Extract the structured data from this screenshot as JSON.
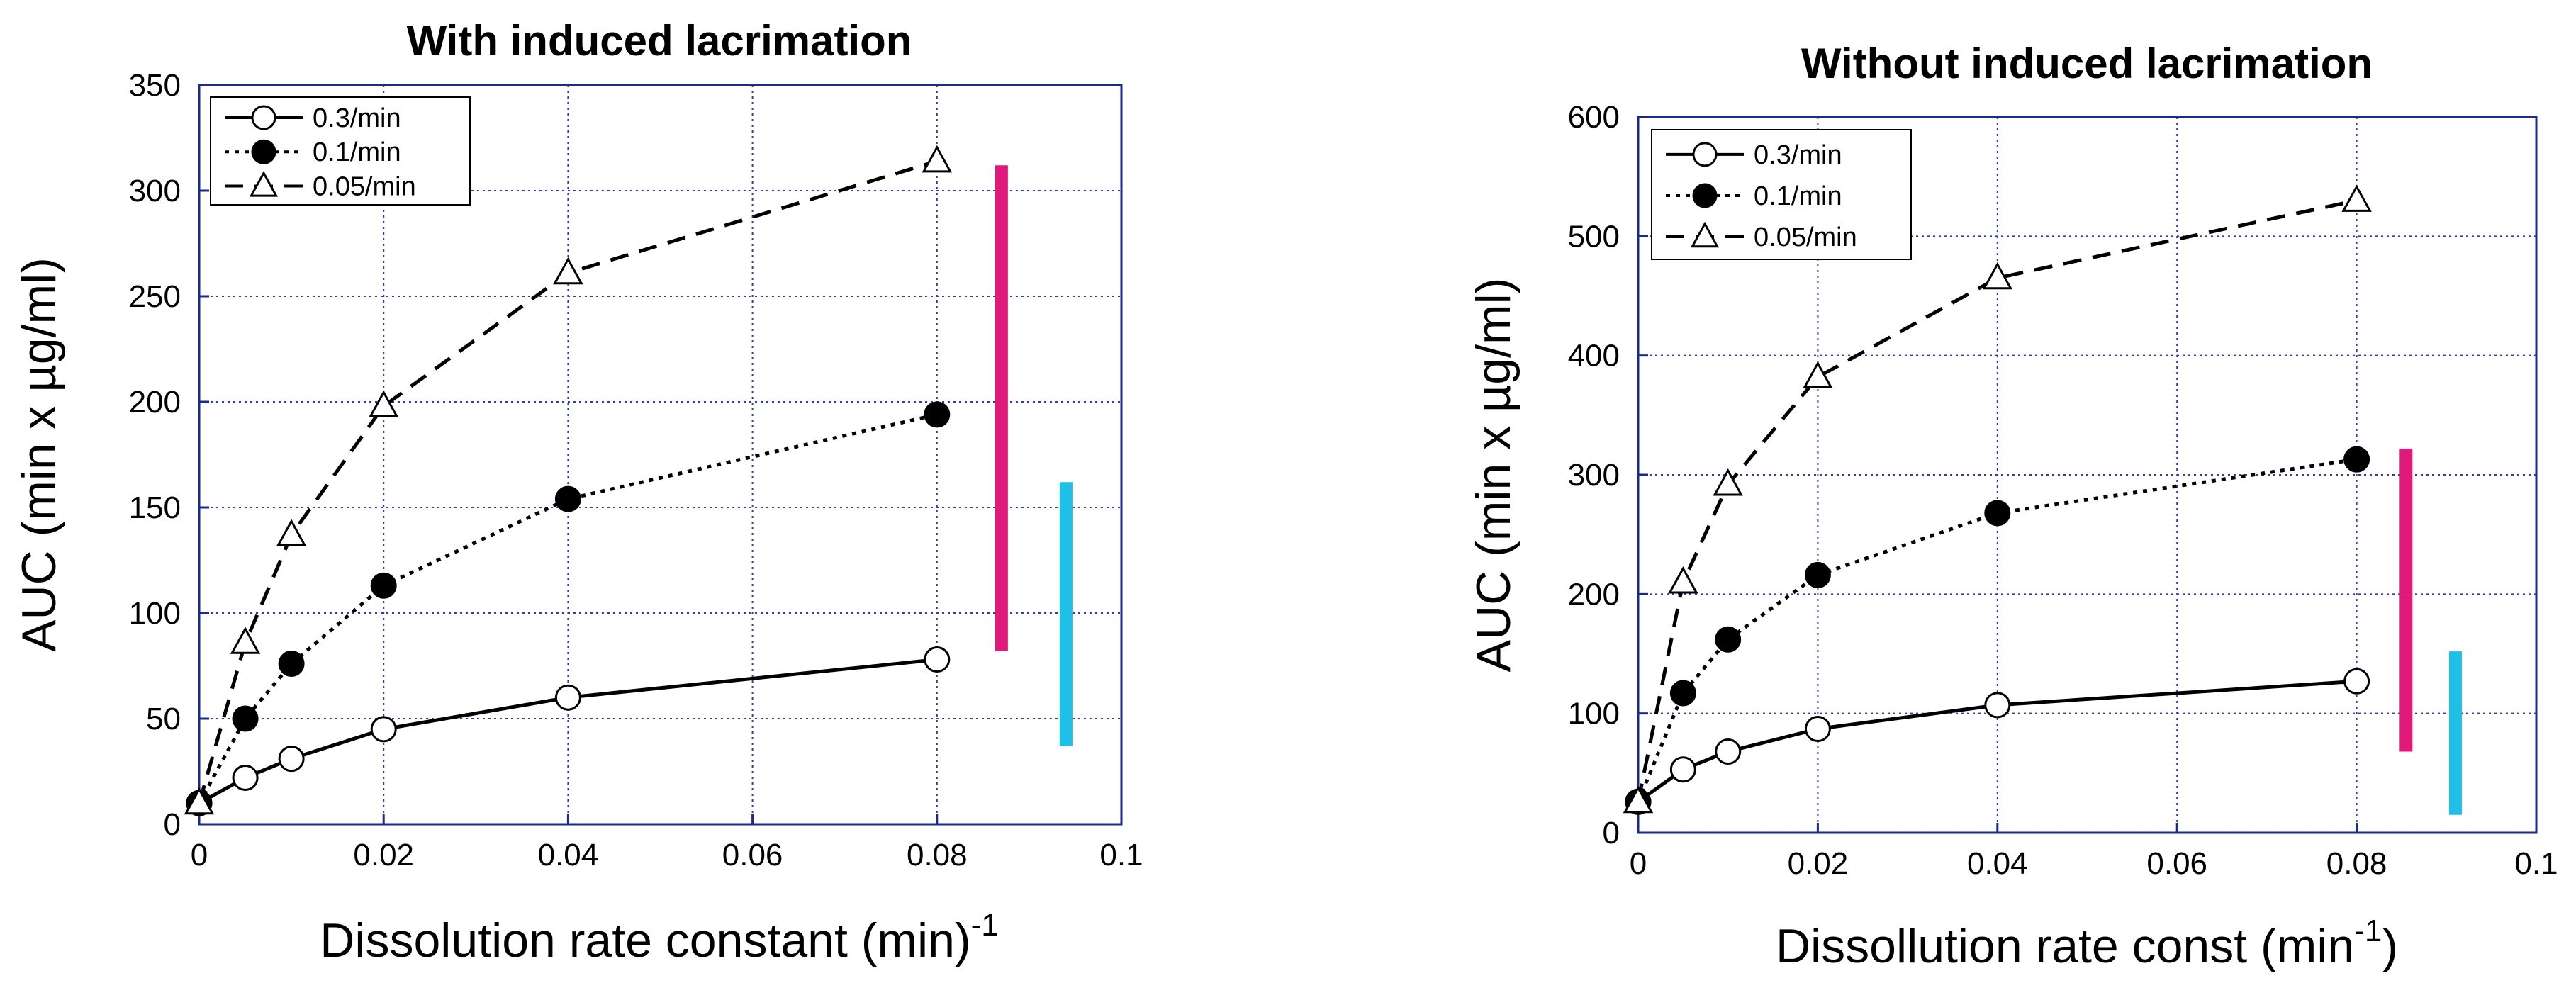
{
  "chart_data": [
    {
      "type": "line",
      "title": "With induced lacrimation",
      "xlabel": "Dissolution rate constant (min)",
      "xlabel_sup": "-1",
      "xlabel_suffix": "",
      "ylabel": "AUC (min x µg/ml)",
      "xlim": [
        0,
        0.1
      ],
      "ylim": [
        0,
        350
      ],
      "x_ticks": [
        0,
        0.02,
        0.04,
        0.06,
        0.08,
        0.1
      ],
      "x_tick_labels": [
        "0",
        "0.02",
        "0.04",
        "0.06",
        "0.08",
        "0.1"
      ],
      "y_ticks": [
        0,
        50,
        100,
        150,
        200,
        250,
        300,
        350
      ],
      "y_tick_labels": [
        "0",
        "50",
        "100",
        "150",
        "200",
        "250",
        "300",
        "350"
      ],
      "grid": true,
      "legend_position": "top-left",
      "x": [
        0,
        0.005,
        0.01,
        0.02,
        0.04,
        0.08
      ],
      "series": [
        {
          "name": "0.3/min",
          "marker": "open-circle",
          "line": "solid",
          "values": [
            10,
            22,
            31,
            45,
            60,
            78
          ]
        },
        {
          "name": "0.1/min",
          "marker": "filled-circle",
          "line": "dotted",
          "values": [
            10,
            50,
            76,
            113,
            154,
            194
          ]
        },
        {
          "name": "0.05/min",
          "marker": "open-triangle",
          "line": "dashed",
          "values": [
            10,
            86,
            137,
            198,
            261,
            314
          ]
        }
      ],
      "range_bars": [
        {
          "color": "#e0197a",
          "x": 0.087,
          "y_range": [
            82,
            312
          ]
        },
        {
          "color": "#1ec0e8",
          "x": 0.094,
          "y_range": [
            37,
            162
          ]
        }
      ]
    },
    {
      "type": "line",
      "title": "Without induced lacrimation",
      "xlabel": "Dissollution rate const (min",
      "xlabel_sup": "-1",
      "xlabel_suffix": ")",
      "ylabel": "AUC (min x µg/ml)",
      "xlim": [
        0,
        0.1
      ],
      "ylim": [
        0,
        600
      ],
      "x_ticks": [
        0,
        0.02,
        0.04,
        0.06,
        0.08,
        0.1
      ],
      "x_tick_labels": [
        "0",
        "0.02",
        "0.04",
        "0.06",
        "0.08",
        "0.1"
      ],
      "y_ticks": [
        0,
        100,
        200,
        300,
        400,
        500,
        600
      ],
      "y_tick_labels": [
        "0",
        "100",
        "200",
        "300",
        "400",
        "500",
        "600"
      ],
      "grid": true,
      "legend_position": "top-left",
      "x": [
        0,
        0.005,
        0.01,
        0.02,
        0.04,
        0.08
      ],
      "series": [
        {
          "name": "0.3/min",
          "marker": "open-circle",
          "line": "solid",
          "values": [
            26,
            53,
            68,
            87,
            107,
            127
          ]
        },
        {
          "name": "0.1/min",
          "marker": "filled-circle",
          "line": "dotted",
          "values": [
            26,
            117,
            162,
            216,
            268,
            313
          ]
        },
        {
          "name": "0.05/min",
          "marker": "open-triangle",
          "line": "dashed",
          "values": [
            26,
            210,
            292,
            382,
            465,
            530
          ]
        }
      ],
      "range_bars": [
        {
          "color": "#e0197a",
          "x": 0.0855,
          "y_range": [
            68,
            322
          ]
        },
        {
          "color": "#1ec0e8",
          "x": 0.091,
          "y_range": [
            15,
            152
          ]
        }
      ]
    }
  ]
}
